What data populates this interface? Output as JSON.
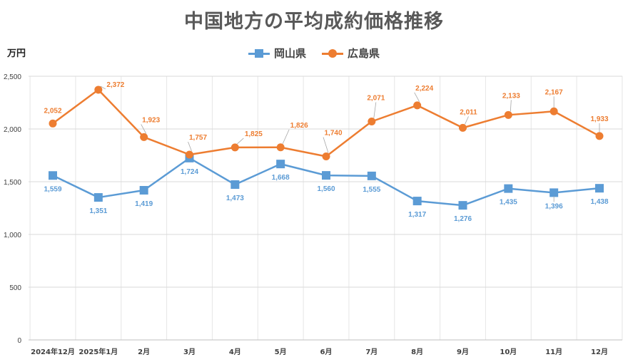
{
  "chart_data": {
    "type": "line",
    "title": "中国地方の平均成約価格推移",
    "ylabel": "万円",
    "xlabel": "",
    "categories": [
      "2024年12月",
      "2025年1月",
      "2月",
      "3月",
      "4月",
      "5月",
      "6月",
      "7月",
      "8月",
      "9月",
      "10月",
      "11月",
      "12月"
    ],
    "ylim": [
      0,
      2500
    ],
    "yticks": [
      0,
      500,
      1000,
      1500,
      2000,
      2500
    ],
    "ytick_labels": [
      "0",
      "500",
      "1,000",
      "1,500",
      "2,000",
      "2,500"
    ],
    "grid": true,
    "legend": "top-center",
    "series": [
      {
        "name": "岡山県",
        "color": "#5B9BD5",
        "marker": "square",
        "values": [
          1559,
          1351,
          1419,
          1724,
          1473,
          1668,
          1560,
          1555,
          1317,
          1276,
          1435,
          1396,
          1438
        ],
        "labels": [
          "1,559",
          "1,351",
          "1,419",
          "1,724",
          "1,473",
          "1,668",
          "1,560",
          "1,555",
          "1,317",
          "1,276",
          "1,435",
          "1,396",
          "1,438"
        ]
      },
      {
        "name": "広島県",
        "color": "#ED7D31",
        "marker": "circle",
        "values": [
          2052,
          2372,
          1923,
          1757,
          1825,
          1826,
          1740,
          2071,
          2224,
          2011,
          2133,
          2167,
          1933
        ],
        "labels": [
          "2,052",
          "2,372",
          "1,923",
          "1,757",
          "1,825",
          "1,826",
          "1,740",
          "2,071",
          "2,224",
          "2,011",
          "2,133",
          "2,167",
          "1,933"
        ]
      }
    ]
  }
}
